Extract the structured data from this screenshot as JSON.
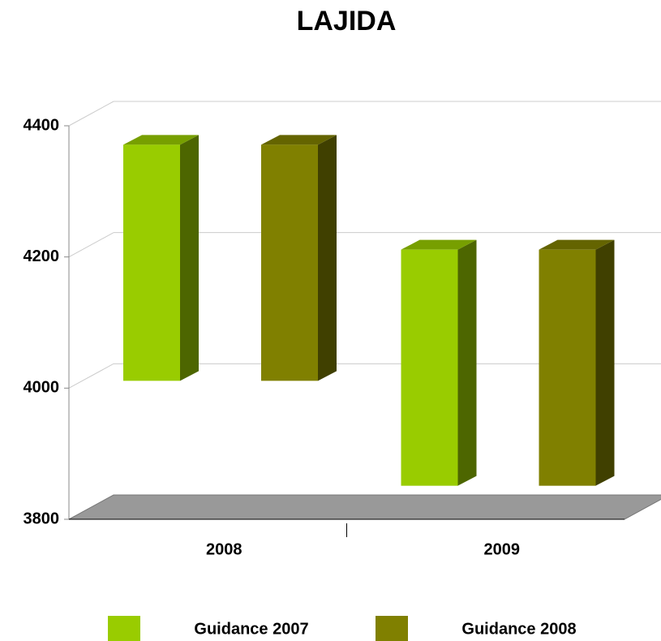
{
  "chart_data": {
    "type": "floating-bar",
    "title": "LAJIDA",
    "categories": [
      "2008",
      "2009"
    ],
    "series": [
      {
        "name": "Guidance 2007",
        "color": "#99cc00",
        "values": [
          [
            4000,
            4360
          ],
          [
            3840,
            4200
          ]
        ]
      },
      {
        "name": "Guidance 2008",
        "color": "#808000",
        "values": [
          [
            4000,
            4360
          ],
          [
            3840,
            4200
          ]
        ]
      }
    ],
    "ylim": [
      3800,
      4400
    ],
    "yticks": [
      3800,
      4000,
      4200,
      4400
    ],
    "grid": true,
    "legend": "bottom"
  }
}
